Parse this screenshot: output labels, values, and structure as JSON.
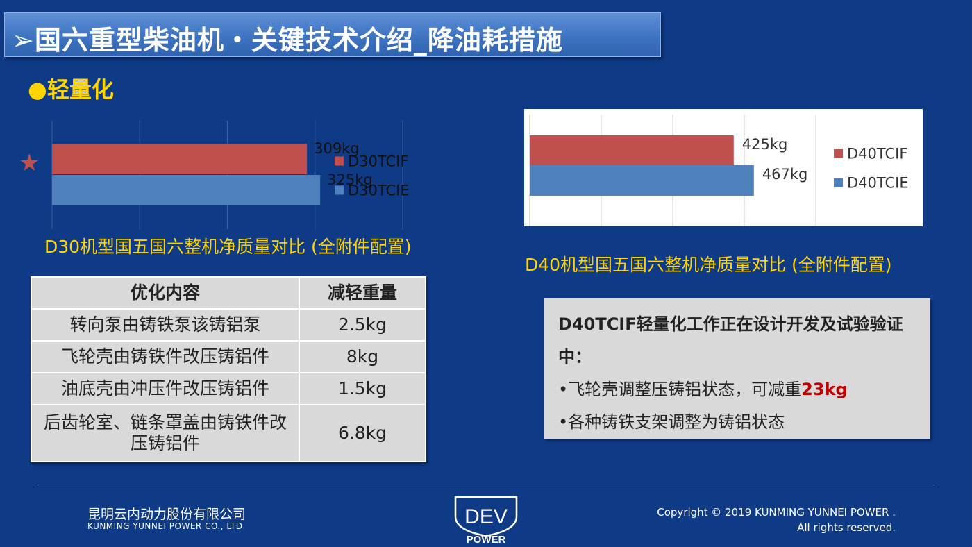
{
  "title": "➢国六重型柴油机・关键技术介绍_降油耗措施",
  "section": "●轻量化",
  "chart_data": [
    {
      "type": "bar",
      "orientation": "horizontal",
      "categories": [
        ""
      ],
      "series": [
        {
          "name": "D30TCIF",
          "values": [
            309
          ],
          "label": "309kg",
          "color": "#c0504d"
        },
        {
          "name": "D30TCIE",
          "values": [
            325
          ],
          "label": "325kg",
          "color": "#4f81bd"
        }
      ],
      "xlim": [
        0,
        425
      ],
      "grid": true,
      "legend": "right",
      "title": "D30机型国五国六整机净质量对比 (全附件配置)"
    },
    {
      "type": "bar",
      "orientation": "horizontal",
      "categories": [
        ""
      ],
      "series": [
        {
          "name": "D40TCIF",
          "values": [
            425
          ],
          "label": "425kg",
          "color": "#c0504d"
        },
        {
          "name": "D40TCIE",
          "values": [
            467
          ],
          "label": "467kg",
          "color": "#4f81bd"
        }
      ],
      "xlim": [
        0,
        596
      ],
      "grid": true,
      "legend": "right",
      "title": "D40机型国五国六整机净质量对比 (全附件配置)"
    }
  ],
  "star_mark": "★",
  "table": {
    "headers": [
      "优化内容",
      "减轻重量"
    ],
    "rows": [
      [
        "转向泵由铸铁泵该铸铝泵",
        "2.5kg"
      ],
      [
        "飞轮壳由铸铁件改压铸铝件",
        "8kg"
      ],
      [
        "油底壳由冲压件改压铸铝件",
        "1.5kg"
      ],
      [
        "后齿轮室、链条罩盖由铸铁件改压铸铝件",
        "6.8kg"
      ]
    ]
  },
  "notice": {
    "head": "D40TCIF轻量化工作正在设计开发及试验验证中：",
    "item1_prefix": "•飞轮壳调整压铸铝状态，可减重",
    "item1_highlight": "23kg",
    "item2": "•各种铸铁支架调整为铸铝状态"
  },
  "footer": {
    "company_cn": "昆明云内动力股份有限公司",
    "company_en": "KUNMING YUNNEI POWER  CO., LTD",
    "copyright_1": "Copyright © 2019 KUNMING YUNNEI POWER .",
    "copyright_2": "All rights reserved.",
    "logo_top": "DEV",
    "logo_bottom": "POWER"
  }
}
